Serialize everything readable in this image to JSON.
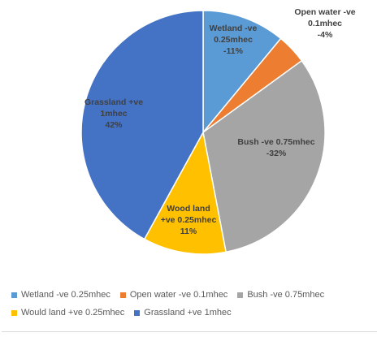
{
  "chart_data": {
    "type": "pie",
    "title": "",
    "start_angle_deg": 0,
    "direction": "clockwise",
    "slices": [
      {
        "legend": "Wetland -ve 0.25mhec",
        "label_lines": [
          "Wetland -ve",
          "0.25mhec",
          "-11%"
        ],
        "value": 11,
        "color": "#5B9BD5"
      },
      {
        "legend": "Open water -ve 0.1mhec",
        "label_lines": [
          "Open water -ve",
          "0.1mhec",
          "-4%"
        ],
        "value": 4,
        "color": "#ED7D31"
      },
      {
        "legend": "Bush -ve 0.75mhec",
        "label_lines": [
          "Bush -ve 0.75mhec",
          "-32%"
        ],
        "value": 32,
        "color": "#A5A5A5"
      },
      {
        "legend": "Would land +ve 0.25mhec",
        "label_lines": [
          "Wood land",
          "+ve 0.25mhec",
          "11%"
        ],
        "value": 11,
        "color": "#FFC000"
      },
      {
        "legend": "Grassland +ve 1mhec",
        "label_lines": [
          "Grassland +ve",
          "1mhec",
          "42%"
        ],
        "value": 42,
        "color": "#4472C4"
      }
    ],
    "legend_position": "bottom"
  }
}
